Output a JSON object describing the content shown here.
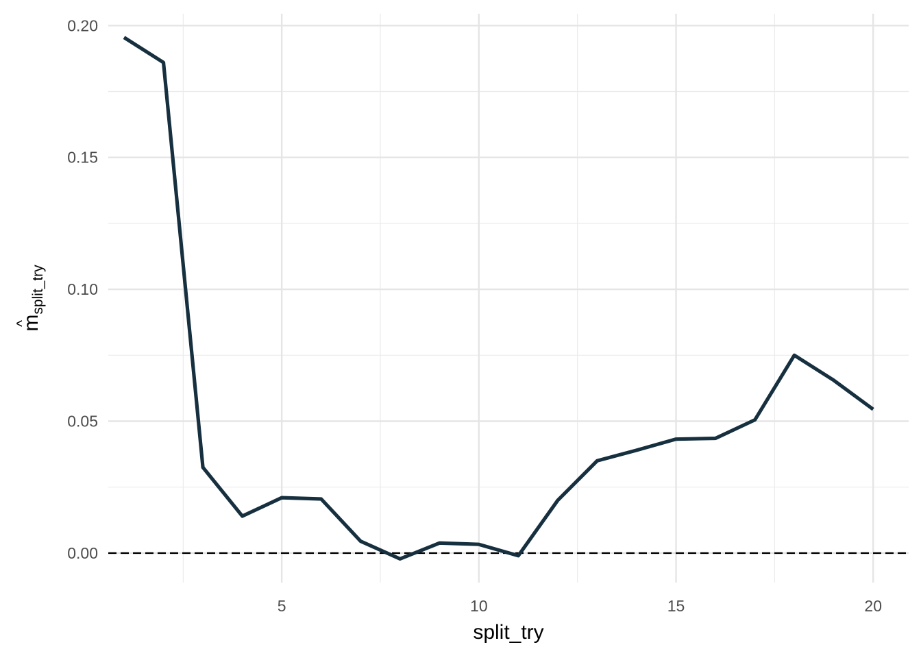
{
  "chart_data": {
    "type": "line",
    "xlabel": "split_try",
    "ylabel": "m",
    "ylabel_hat": "^",
    "ylabel_subscript": "split_try",
    "xlim": [
      0.6,
      20.9
    ],
    "ylim": [
      -0.0112,
      0.2045
    ],
    "x_ticks": [
      5,
      10,
      15,
      20
    ],
    "x_minor_ticks": [
      2.5,
      7.5,
      12.5,
      17.5
    ],
    "y_ticks": [
      0.0,
      0.05,
      0.1,
      0.15,
      0.2
    ],
    "y_tick_labels": [
      "0.00",
      "0.05",
      "0.10",
      "0.15",
      "0.20"
    ],
    "y_minor_ticks": [
      0.025,
      0.075,
      0.125,
      0.175
    ],
    "grid": true,
    "reference_line": {
      "y": 0,
      "style": "dashed",
      "color": "#000000"
    },
    "series": [
      {
        "color": "#17303f",
        "x": [
          1,
          2,
          3,
          4,
          5,
          6,
          7,
          8,
          9,
          10,
          11,
          12,
          13,
          14,
          15,
          16,
          17,
          18,
          19,
          20
        ],
        "y": [
          0.1955,
          0.186,
          0.0325,
          0.014,
          0.021,
          0.0205,
          0.0045,
          -0.0022,
          0.0038,
          0.0033,
          -0.001,
          0.02,
          0.035,
          0.039,
          0.0432,
          0.0435,
          0.0505,
          0.075,
          0.0655,
          0.0545
        ]
      }
    ]
  }
}
